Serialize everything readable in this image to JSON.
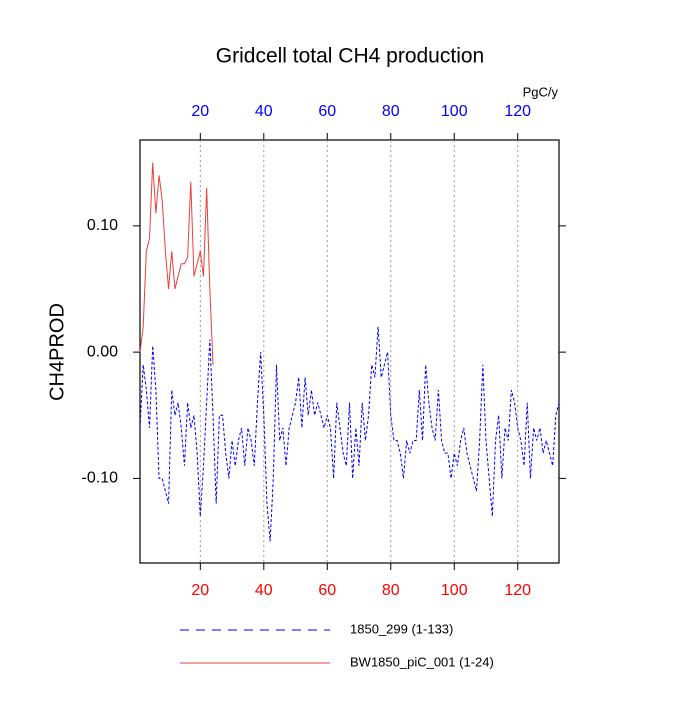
{
  "chart_data": {
    "type": "line",
    "title": "Gridcell total CH4 production",
    "y_label": "CH4PROD",
    "units": "PgC/y",
    "xlim": [
      1,
      133
    ],
    "xticks": [
      20,
      40,
      60,
      80,
      100,
      120
    ],
    "xtick_color": "#ff0000",
    "x2ticks": [
      20,
      40,
      60,
      80,
      100,
      120
    ],
    "x2tick_color": "#0000ff",
    "ylim": [
      -0.167,
      0.168
    ],
    "yticks": [
      {
        "value": 0.1,
        "label": "0.10"
      },
      {
        "value": 0,
        "label": "0.00"
      },
      {
        "value": -0.1,
        "label": "-0.10"
      }
    ],
    "grid": true,
    "series": [
      {
        "name": "1850_299 (1-133)",
        "color": "#0000ff",
        "dashed": true,
        "x": [
          1,
          2,
          3,
          4,
          5,
          6,
          7,
          8,
          9,
          10,
          11,
          12,
          13,
          14,
          15,
          16,
          17,
          18,
          19,
          20,
          21,
          22,
          23,
          24,
          25,
          26,
          27,
          28,
          29,
          30,
          31,
          32,
          33,
          34,
          35,
          36,
          37,
          38,
          39,
          40,
          41,
          42,
          43,
          44,
          45,
          46,
          47,
          48,
          49,
          50,
          51,
          52,
          53,
          54,
          55,
          56,
          57,
          58,
          59,
          60,
          61,
          62,
          63,
          64,
          65,
          66,
          67,
          68,
          69,
          70,
          71,
          72,
          73,
          74,
          75,
          76,
          77,
          78,
          79,
          80,
          81,
          82,
          83,
          84,
          85,
          86,
          87,
          88,
          89,
          90,
          91,
          92,
          93,
          94,
          95,
          96,
          97,
          98,
          99,
          100,
          101,
          102,
          103,
          104,
          105,
          106,
          107,
          108,
          109,
          110,
          111,
          112,
          113,
          114,
          115,
          116,
          117,
          118,
          119,
          120,
          121,
          122,
          123,
          124,
          125,
          126,
          127,
          128,
          129,
          130,
          131,
          132,
          133
        ],
        "values": [
          -0.06,
          -0.01,
          -0.03,
          -0.06,
          0.005,
          -0.03,
          -0.1,
          -0.1,
          -0.11,
          -0.12,
          -0.03,
          -0.05,
          -0.04,
          -0.06,
          -0.09,
          -0.04,
          -0.06,
          -0.05,
          -0.08,
          -0.13,
          -0.09,
          -0.04,
          0.01,
          -0.05,
          -0.12,
          -0.05,
          -0.05,
          -0.08,
          -0.1,
          -0.07,
          -0.09,
          -0.07,
          -0.06,
          -0.09,
          -0.06,
          -0.07,
          -0.09,
          -0.04,
          0.0,
          -0.05,
          -0.12,
          -0.15,
          -0.1,
          -0.01,
          -0.07,
          -0.06,
          -0.09,
          -0.06,
          -0.05,
          -0.04,
          -0.02,
          -0.06,
          -0.02,
          -0.05,
          -0.03,
          -0.05,
          -0.04,
          -0.05,
          -0.06,
          -0.05,
          -0.06,
          -0.1,
          -0.04,
          -0.06,
          -0.08,
          -0.09,
          -0.04,
          -0.1,
          -0.06,
          -0.09,
          -0.04,
          -0.07,
          -0.05,
          -0.01,
          -0.02,
          0.02,
          -0.02,
          -0.01,
          0.0,
          -0.05,
          -0.07,
          -0.07,
          -0.08,
          -0.1,
          -0.07,
          -0.08,
          -0.07,
          -0.07,
          -0.03,
          -0.07,
          -0.01,
          -0.04,
          -0.06,
          -0.07,
          -0.03,
          -0.07,
          -0.08,
          -0.08,
          -0.1,
          -0.08,
          -0.09,
          -0.07,
          -0.06,
          -0.08,
          -0.09,
          -0.1,
          -0.11,
          -0.07,
          -0.01,
          -0.07,
          -0.1,
          -0.13,
          -0.07,
          -0.05,
          -0.1,
          -0.06,
          -0.07,
          -0.03,
          -0.04,
          -0.06,
          -0.07,
          -0.09,
          -0.04,
          -0.1,
          -0.06,
          -0.07,
          -0.06,
          -0.08,
          -0.07,
          -0.08,
          -0.09,
          -0.05,
          -0.04
        ]
      },
      {
        "name": "BW1850_piC_001 (1-24)",
        "color": "#e8413c",
        "dashed": false,
        "x": [
          1,
          2,
          3,
          4,
          5,
          6,
          7,
          8,
          9,
          10,
          11,
          12,
          13,
          14,
          15,
          16,
          17,
          18,
          19,
          20,
          21,
          22,
          23,
          24
        ],
        "values": [
          0.0,
          0.02,
          0.08,
          0.09,
          0.15,
          0.11,
          0.14,
          0.12,
          0.08,
          0.05,
          0.08,
          0.05,
          0.06,
          0.07,
          0.07,
          0.075,
          0.135,
          0.06,
          0.07,
          0.08,
          0.06,
          0.13,
          0.05,
          -0.01
        ]
      }
    ]
  }
}
